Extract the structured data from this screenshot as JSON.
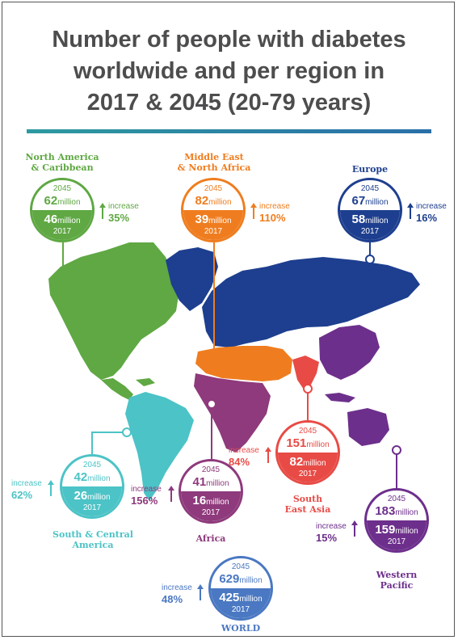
{
  "title_lines": [
    "Number of people with diabetes",
    "worldwide and per region in",
    "2017 & 2045 (20-79 years)"
  ],
  "labels": {
    "million": "million",
    "increase": "increase"
  },
  "regions": [
    {
      "key": "north_america",
      "name_lines": [
        "North America",
        "& Caribbean"
      ],
      "year_future": "2045",
      "value_2045": "62",
      "value_2017": "46",
      "year_now": "2017",
      "increase": "35%",
      "color": "#5fa843"
    },
    {
      "key": "mena",
      "name_lines": [
        "Middle East",
        "& North Africa"
      ],
      "year_future": "2045",
      "value_2045": "82",
      "value_2017": "39",
      "year_now": "2017",
      "increase": "110%",
      "color": "#ef7d1f"
    },
    {
      "key": "europe",
      "name_lines": [
        "Europe"
      ],
      "year_future": "2045",
      "value_2045": "67",
      "value_2017": "58",
      "year_now": "2017",
      "increase": "16%",
      "color": "#1e3f8f"
    },
    {
      "key": "sca",
      "name_lines": [
        "South & Central",
        "America"
      ],
      "year_future": "2045",
      "value_2045": "42",
      "value_2017": "26",
      "year_now": "2017",
      "increase": "62%",
      "color": "#4cc3c6"
    },
    {
      "key": "africa",
      "name_lines": [
        "Africa"
      ],
      "year_future": "2045",
      "value_2045": "41",
      "value_2017": "16",
      "year_now": "2017",
      "increase": "156%",
      "color": "#8e3a7c"
    },
    {
      "key": "sea",
      "name_lines": [
        "South",
        "East Asia"
      ],
      "year_future": "2045",
      "value_2045": "151",
      "value_2017": "82",
      "year_now": "2017",
      "increase": "84%",
      "color": "#e84b46"
    },
    {
      "key": "wp",
      "name_lines": [
        "Western",
        "Pacific"
      ],
      "year_future": "2045",
      "value_2045": "183",
      "value_2017": "159",
      "year_now": "2017",
      "increase": "15%",
      "color": "#6d2f8c"
    },
    {
      "key": "world",
      "name_lines": [
        "WORLD"
      ],
      "year_future": "2045",
      "value_2045": "629",
      "value_2017": "425",
      "year_now": "2017",
      "increase": "48%",
      "color": "#4a78c2"
    }
  ]
}
